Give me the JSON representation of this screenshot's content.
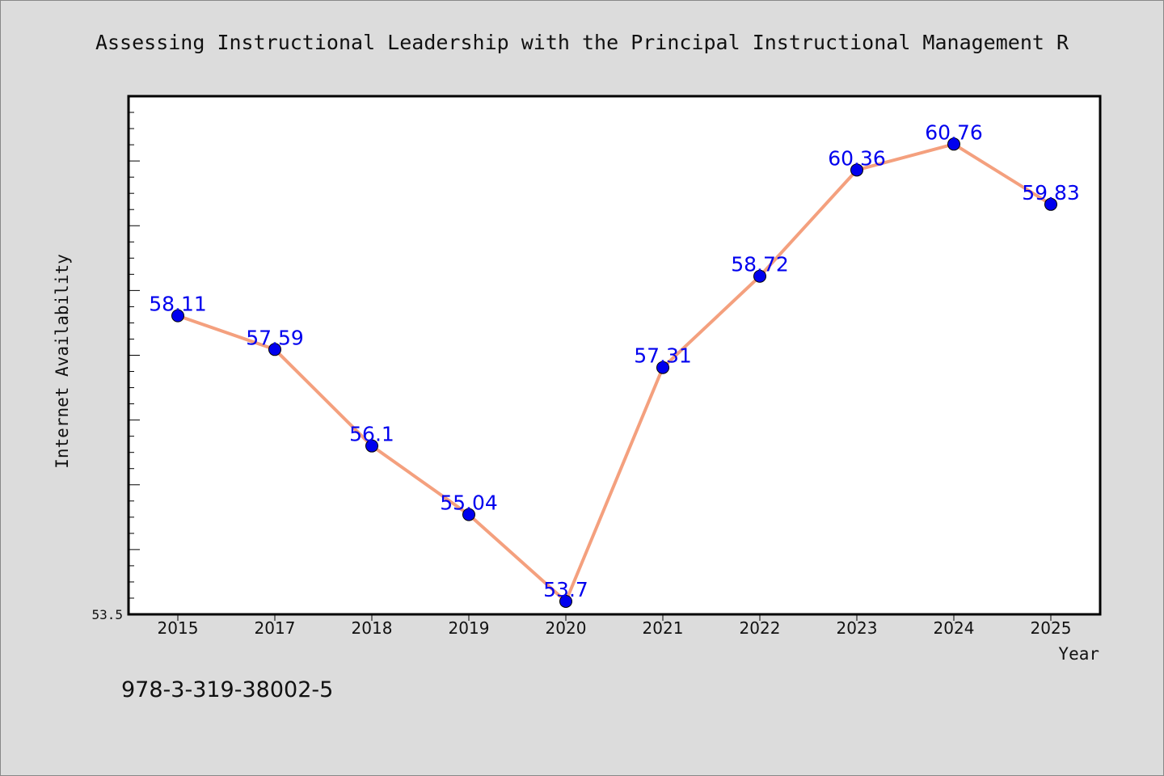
{
  "chart_data": {
    "type": "line",
    "title": "Assessing Instructional Leadership with the Principal Instructional Management R",
    "xlabel": "Year",
    "ylabel": "Internet Availability",
    "categories": [
      "2015",
      "2017",
      "2018",
      "2019",
      "2020",
      "2021",
      "2022",
      "2023",
      "2024",
      "2025"
    ],
    "values": [
      58.11,
      57.59,
      56.1,
      55.04,
      53.7,
      57.31,
      58.72,
      60.36,
      60.76,
      59.83
    ],
    "data_labels": [
      "58.11",
      "57.59",
      "56.1",
      "55.04",
      "53.7",
      "57.31",
      "58.72",
      "60.36",
      "60.76",
      "59.83"
    ],
    "ylim": [
      53.5,
      61.5
    ],
    "yticks_labeled": [
      "53.5"
    ],
    "grid": false,
    "line_color": "#f4a07e",
    "marker_color": "#0000ee",
    "label_color": "#0000ee"
  },
  "footer": {
    "isbn": "978-3-319-38002-5"
  }
}
